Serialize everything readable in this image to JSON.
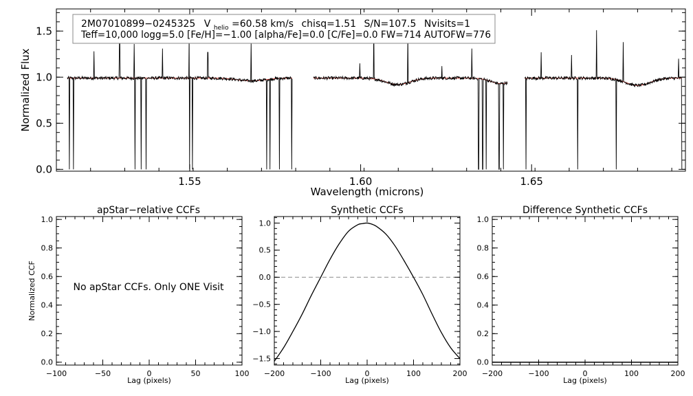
{
  "chart_data": [
    {
      "type": "line",
      "xlabel": "Wavelength (microns)",
      "ylabel": "Normalized Flux",
      "xlim": [
        1.511,
        1.695
      ],
      "ylim": [
        -0.02,
        1.74
      ],
      "xticks": [
        1.55,
        1.6,
        1.65
      ],
      "xtick_labels": [
        "1.55",
        "1.60",
        "1.65"
      ],
      "yticks": [
        0.0,
        0.5,
        1.0,
        1.5
      ],
      "ytick_labels": [
        "0.0",
        "0.5",
        "1.0",
        "1.5"
      ],
      "info_line1": {
        "object": "2M07010899−0245325",
        "v_prefix": "V",
        "v_subscript": "helio",
        "v_value": "=60.58 km/s",
        "chisq": "chisq=1.51",
        "snr": "S/N=107.5",
        "nvisits": "Nvisits=1"
      },
      "info_line2": "Teff=10,000 logg=5.0 [Fe/H]=−1.00 [alpha/Fe]=0.0 [C/Fe]=0.0 FW=714 AUTOFW=776",
      "chip_ranges": [
        [
          1.5142,
          1.58
        ],
        [
          1.5862,
          1.643
        ],
        [
          1.648,
          1.694
        ]
      ],
      "continuum": 0.99,
      "broad_features": [
        {
          "center": 1.568,
          "depth": 0.03,
          "width": 0.004
        },
        {
          "center": 1.6109,
          "depth": 0.07,
          "width": 0.0035
        },
        {
          "center": 1.6411,
          "depth": 0.06,
          "width": 0.003
        },
        {
          "center": 1.6811,
          "depth": 0.08,
          "width": 0.0035
        }
      ],
      "drops": [
        1.5148,
        1.516,
        1.534,
        1.5358,
        1.5372,
        1.55,
        1.5508,
        1.5725,
        1.5735,
        1.5762,
        1.5798,
        1.6345,
        1.6357,
        1.6367,
        1.6405,
        1.6418,
        1.6484,
        1.6635,
        1.6748,
        1.694
      ],
      "spikes": [
        {
          "x": 1.522,
          "y": 1.28
        },
        {
          "x": 1.5295,
          "y": 1.38
        },
        {
          "x": 1.5338,
          "y": 1.36
        },
        {
          "x": 1.542,
          "y": 1.31
        },
        {
          "x": 1.5498,
          "y": 1.46
        },
        {
          "x": 1.5553,
          "y": 1.27
        },
        {
          "x": 1.568,
          "y": 1.38
        },
        {
          "x": 1.5998,
          "y": 1.15
        },
        {
          "x": 1.6038,
          "y": 1.55
        },
        {
          "x": 1.6138,
          "y": 1.47
        },
        {
          "x": 1.6238,
          "y": 1.12
        },
        {
          "x": 1.6325,
          "y": 1.31
        },
        {
          "x": 1.6528,
          "y": 1.27
        },
        {
          "x": 1.6617,
          "y": 1.24
        },
        {
          "x": 1.669,
          "y": 1.51
        },
        {
          "x": 1.6768,
          "y": 1.38
        },
        {
          "x": 1.693,
          "y": 1.2
        }
      ],
      "series": [
        {
          "color": "#000000"
        },
        {
          "color": "#e03a2f"
        }
      ]
    },
    {
      "type": "line",
      "title": "apStar−relative CCFs",
      "xlabel": "Lag (pixels)",
      "ylabel": "Normalized CCF",
      "xlim": [
        -100,
        100
      ],
      "ylim": [
        -0.02,
        1.02
      ],
      "xticks": [
        -100,
        -50,
        0,
        50,
        100
      ],
      "xtick_labels": [
        "−100",
        "−50",
        "0",
        "50",
        "100"
      ],
      "yticks": [
        0.0,
        0.2,
        0.4,
        0.6,
        0.8,
        1.0
      ],
      "ytick_labels": [
        "0.0",
        "0.2",
        "0.4",
        "0.6",
        "0.8",
        "1.0"
      ],
      "message": "No apStar CCFs.  Only ONE Visit"
    },
    {
      "type": "line",
      "title": "Synthetic CCFs",
      "xlabel": "Lag (pixels)",
      "xlim": [
        -200,
        200
      ],
      "ylim": [
        -1.62,
        1.12
      ],
      "xticks": [
        -200,
        -100,
        0,
        100,
        200
      ],
      "xtick_labels": [
        "−200",
        "−100",
        "0",
        "100",
        "200"
      ],
      "yticks": [
        -1.5,
        -1.0,
        -0.5,
        0.0,
        0.5,
        1.0
      ],
      "ytick_labels": [
        "−1.5",
        "−1.0",
        "−0.5",
        "0.0",
        "0.5",
        "1.0"
      ],
      "zero_line": 0.0,
      "series": [
        {
          "color": "#000000",
          "x": [
            -200,
            -180,
            -160,
            -140,
            -120,
            -100,
            -80,
            -60,
            -40,
            -20,
            -10,
            0,
            10,
            20,
            40,
            60,
            80,
            100,
            120,
            140,
            160,
            180,
            200
          ],
          "y": [
            -1.55,
            -1.3,
            -1.0,
            -0.68,
            -0.33,
            0.0,
            0.33,
            0.62,
            0.85,
            0.97,
            0.99,
            1.0,
            0.98,
            0.94,
            0.8,
            0.58,
            0.3,
            0.0,
            -0.32,
            -0.68,
            -1.02,
            -1.3,
            -1.5
          ]
        }
      ]
    },
    {
      "type": "line",
      "title": "Difference Synthetic CCFs",
      "xlabel": "Lag (pixels)",
      "xlim": [
        -200,
        200
      ],
      "ylim": [
        -0.02,
        1.02
      ],
      "xticks": [
        -200,
        -100,
        0,
        100,
        200
      ],
      "xtick_labels": [
        "−200",
        "−100",
        "0",
        "100",
        "200"
      ],
      "yticks": [
        0.0,
        0.2,
        0.4,
        0.6,
        0.8,
        1.0
      ],
      "ytick_labels": [
        "0.0",
        "0.2",
        "0.4",
        "0.6",
        "0.8",
        "1.0"
      ],
      "series": [
        {
          "color": "#000000",
          "x": [
            -200,
            200
          ],
          "y": [
            0.0,
            0.0
          ]
        }
      ]
    }
  ]
}
